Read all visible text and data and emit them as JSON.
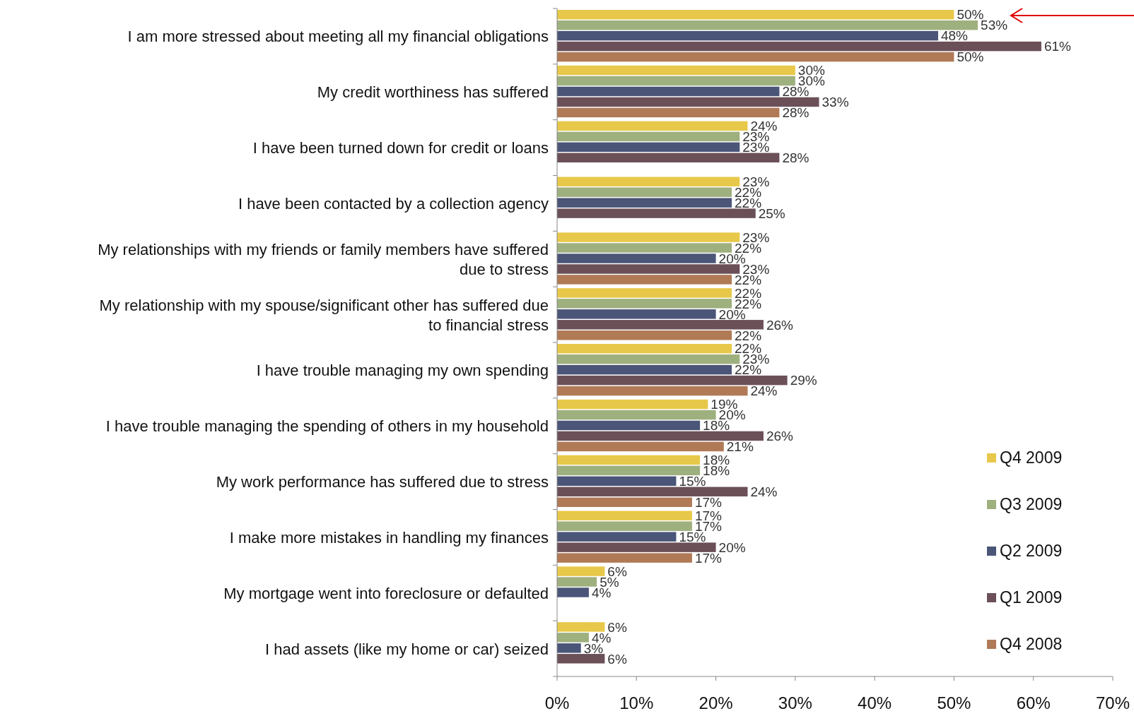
{
  "chart_data": {
    "type": "bar",
    "orientation": "horizontal",
    "categories": [
      "I am more stressed about meeting all my financial obligations",
      "My credit worthiness has suffered",
      "I have been turned down for credit or loans",
      "I have been contacted by a collection agency",
      "My relationships with my friends or family members have suffered due to stress",
      "My relationship with my spouse/significant other has suffered due to financial stress",
      "I have trouble managing my own spending",
      "I have trouble managing the spending of others in my household",
      "My work performance has suffered due to stress",
      "I make more mistakes in handling my finances",
      "My mortgage went into foreclosure or defaulted",
      "I had assets (like my home or car) seized"
    ],
    "series": [
      {
        "name": "Q4 2009",
        "color": "#e8c84a",
        "values": [
          50,
          30,
          24,
          23,
          23,
          22,
          22,
          19,
          18,
          17,
          6,
          6
        ],
        "value_labels": [
          "50%",
          "30%",
          "24%",
          "23%",
          "23%",
          "22%",
          "22%",
          "19%",
          "18%",
          "17%",
          "6%",
          "6%"
        ]
      },
      {
        "name": "Q3 2009",
        "color": "#9fb07f",
        "values": [
          53,
          30,
          23,
          22,
          22,
          22,
          23,
          20,
          18,
          17,
          5,
          4
        ],
        "value_labels": [
          "53%",
          "30%",
          "23%",
          "22%",
          "22%",
          "22%",
          "23%",
          "20%",
          "18%",
          "17%",
          "5%",
          "4%"
        ]
      },
      {
        "name": "Q2 2009",
        "color": "#4a5578",
        "values": [
          48,
          28,
          23,
          22,
          20,
          20,
          22,
          18,
          15,
          15,
          4,
          3
        ],
        "value_labels": [
          "48%",
          "28%",
          "23%",
          "22%",
          "20%",
          "20%",
          "22%",
          "18%",
          "15%",
          "15%",
          "4%",
          "3%"
        ]
      },
      {
        "name": "Q1 2009",
        "color": "#6b5058",
        "values": [
          61,
          33,
          28,
          25,
          23,
          26,
          29,
          26,
          24,
          20,
          null,
          6
        ],
        "value_labels": [
          "61%",
          "33%",
          "28%",
          "25%",
          "23%",
          "26%",
          "29%",
          "26%",
          "24%",
          "20%",
          null,
          "6%"
        ]
      },
      {
        "name": "Q4 2008",
        "color": "#b07a56",
        "values": [
          50,
          28,
          null,
          null,
          22,
          22,
          24,
          21,
          17,
          17,
          null,
          null
        ],
        "value_labels": [
          "50%",
          "28%",
          null,
          null,
          "22%",
          "22%",
          "24%",
          "21%",
          "17%",
          "17%",
          null,
          null
        ]
      }
    ],
    "xlim": [
      0,
      70
    ],
    "xticks": [
      {
        "value": 0,
        "label": "0%"
      },
      {
        "value": 10,
        "label": "10%"
      },
      {
        "value": 20,
        "label": "20%"
      },
      {
        "value": 30,
        "label": "30%"
      },
      {
        "value": 40,
        "label": "40%"
      },
      {
        "value": 50,
        "label": "50%"
      },
      {
        "value": 60,
        "label": "60%"
      },
      {
        "value": 70,
        "label": "70%"
      }
    ],
    "grid": false,
    "legend": "right"
  }
}
